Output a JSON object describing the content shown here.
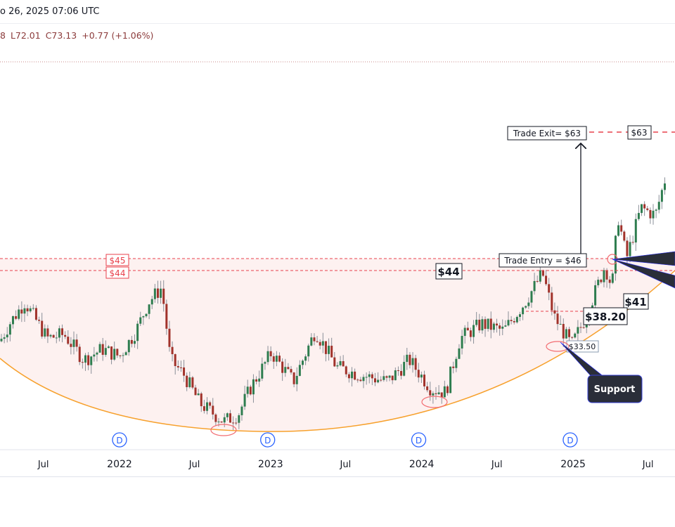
{
  "header": {
    "datetime": "o 26, 2025 07:06 UTC"
  },
  "ohlc": {
    "open_fragment": "8",
    "low": "L72.01",
    "close": "C73.13",
    "change": "+0.77 (+1.06%)"
  },
  "colors": {
    "up": "#2e7d4f",
    "down": "#a1322b",
    "level": "#e8414c",
    "arc": "#f7a12d",
    "fill": "#fdf1f0",
    "callout": "#2a2e39",
    "dividend": "#2962ff"
  },
  "chart_data": {
    "type": "candlestick",
    "title": "",
    "x_ticks": [
      {
        "date": "2021-07-01",
        "label": "Jul"
      },
      {
        "date": "2022-01-01",
        "label": "2022"
      },
      {
        "date": "2022-07-01",
        "label": "Jul"
      },
      {
        "date": "2023-01-01",
        "label": "2023"
      },
      {
        "date": "2023-07-01",
        "label": "Jul"
      },
      {
        "date": "2024-01-01",
        "label": "2024"
      },
      {
        "date": "2024-07-01",
        "label": "Jul"
      },
      {
        "date": "2025-01-01",
        "label": "2025"
      },
      {
        "date": "2025-07-01",
        "label": "Jul"
      }
    ],
    "price_path": [
      [
        "2021-03-08",
        33.5
      ],
      [
        "2021-04-10",
        37
      ],
      [
        "2021-05-17",
        40
      ],
      [
        "2021-07-10",
        35
      ],
      [
        "2021-08-20",
        35.5
      ],
      [
        "2021-10-07",
        32
      ],
      [
        "2021-11-20",
        33.5
      ],
      [
        "2022-01-01",
        32.5
      ],
      [
        "2022-02-10",
        36
      ],
      [
        "2022-03-12",
        40
      ],
      [
        "2022-04-13",
        42
      ],
      [
        "2022-05-04",
        32
      ],
      [
        "2022-06-05",
        30
      ],
      [
        "2022-07-14",
        26
      ],
      [
        "2022-09-10",
        23.5
      ],
      [
        "2022-10-15",
        24.5
      ],
      [
        "2022-11-12",
        28
      ],
      [
        "2023-01-03",
        33
      ],
      [
        "2023-02-25",
        29
      ],
      [
        "2023-04-19",
        36
      ],
      [
        "2023-06-10",
        31
      ],
      [
        "2023-08-02",
        30
      ],
      [
        "2023-10-11",
        29
      ],
      [
        "2023-12-02",
        32
      ],
      [
        "2024-01-24",
        28
      ],
      [
        "2024-02-28",
        27.5
      ],
      [
        "2024-04-03",
        35
      ],
      [
        "2024-05-25",
        37
      ],
      [
        "2024-07-17",
        36
      ],
      [
        "2024-09-07",
        40
      ],
      [
        "2024-10-19",
        44
      ],
      [
        "2024-11-16",
        38
      ],
      [
        "2024-12-28",
        34
      ],
      [
        "2025-02-01",
        38
      ],
      [
        "2025-03-19",
        45
      ],
      [
        "2025-04-05",
        42
      ],
      [
        "2025-04-19",
        52
      ],
      [
        "2025-05-10",
        46
      ],
      [
        "2025-06-14",
        53
      ],
      [
        "2025-07-19",
        52
      ],
      [
        "2025-08-16",
        58
      ],
      [
        "2025-09-03",
        65
      ],
      [
        "2025-09-20",
        73.13
      ]
    ],
    "levels": [
      {
        "price": 45,
        "label": "$45"
      },
      {
        "price": 44,
        "label": "$44"
      },
      {
        "price": 63,
        "label": "$63"
      },
      {
        "price": 38.2,
        "label": "$38.20"
      }
    ],
    "last_price": 73.13,
    "annotations": {
      "trade_exit": "Trade Exit= $63",
      "trade_entry": "Trade Entry = $46",
      "level_44": "$44",
      "level_41": "$41",
      "level_38": "$38.20",
      "support_price": "$33.50",
      "support_callout": "Support",
      "dividend_marker": "D"
    },
    "dividend_dates": [
      "2022-01-01",
      "2022-12-25",
      "2023-12-25",
      "2024-12-25"
    ]
  }
}
